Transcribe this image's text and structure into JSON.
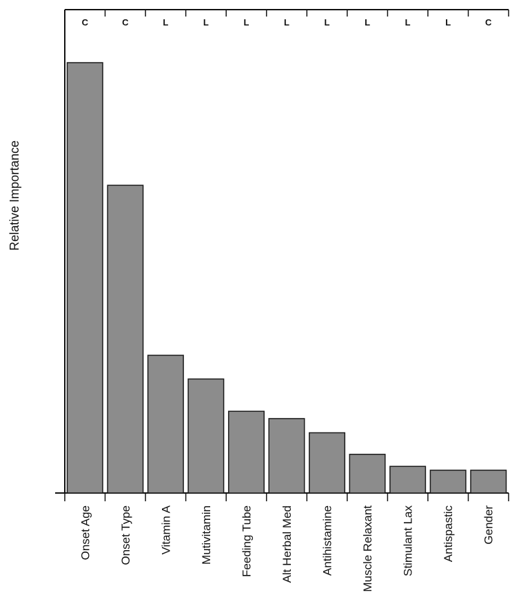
{
  "chart_data": {
    "type": "bar",
    "ylabel": "Relative Importance",
    "xlabel": "",
    "ylim": [
      0,
      1
    ],
    "categories": [
      "Onset Age",
      "Onset Type",
      "Vitamin A",
      "Mutivitamin",
      "Feeding Tube",
      "Alt Herbal Med",
      "Antihistamine",
      "Muscle Relaxant",
      "Stimulant Lax",
      "Antispastic",
      "Gender"
    ],
    "values": [
      1.0,
      0.715,
      0.32,
      0.265,
      0.19,
      0.173,
      0.14,
      0.09,
      0.062,
      0.053,
      0.053
    ],
    "top_markers": [
      "C",
      "C",
      "L",
      "L",
      "L",
      "L",
      "L",
      "L",
      "L",
      "L",
      "C"
    ],
    "bar_color": "#8c8c8c",
    "bar_edge_color": "#1a1a1a",
    "grid": false
  }
}
